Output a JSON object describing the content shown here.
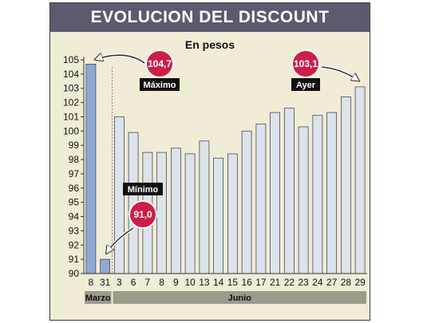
{
  "chart_data": {
    "type": "bar",
    "title": "EVOLUCION DEL DISCOUNT",
    "subtitle": "En pesos",
    "categories": [
      "8",
      "31",
      "3",
      "6",
      "7",
      "8",
      "9",
      "10",
      "13",
      "14",
      "15",
      "16",
      "17",
      "21",
      "22",
      "23",
      "24",
      "27",
      "28",
      "29"
    ],
    "values": [
      104.7,
      91.0,
      101.0,
      99.9,
      98.5,
      98.5,
      98.8,
      98.4,
      99.3,
      98.1,
      98.4,
      100.0,
      100.5,
      101.3,
      101.6,
      100.3,
      101.1,
      101.3,
      102.4,
      103.1
    ],
    "highlight": [
      true,
      true,
      false,
      false,
      false,
      false,
      false,
      false,
      false,
      false,
      false,
      false,
      false,
      false,
      false,
      false,
      false,
      false,
      false,
      false
    ],
    "yticks": [
      90,
      91,
      92,
      93,
      94,
      95,
      96,
      97,
      98,
      99,
      100,
      101,
      102,
      103,
      104,
      105
    ],
    "ylim": [
      90,
      105
    ],
    "grid": false,
    "months": [
      {
        "label": "Marzo",
        "from": 0,
        "to": 1
      },
      {
        "label": "Junio",
        "from": 2,
        "to": 19
      }
    ],
    "annotations": [
      {
        "value_text": "104,7",
        "tag": "Máximo",
        "index": 0
      },
      {
        "value_text": "91,0",
        "tag": "Mínimo",
        "index": 1
      },
      {
        "value_text": "103,1",
        "tag": "Ayer",
        "index": 19
      }
    ],
    "colors": {
      "background": "#f1ecd6",
      "header": "#5c5a6e",
      "bar": "#dde3ea",
      "bar_highlight": "#8eaad3",
      "bar_stroke": "#4a4a5a",
      "callout": "#cc1e48",
      "tag_bg": "#111111",
      "month_band": "#9d9b8e"
    }
  }
}
